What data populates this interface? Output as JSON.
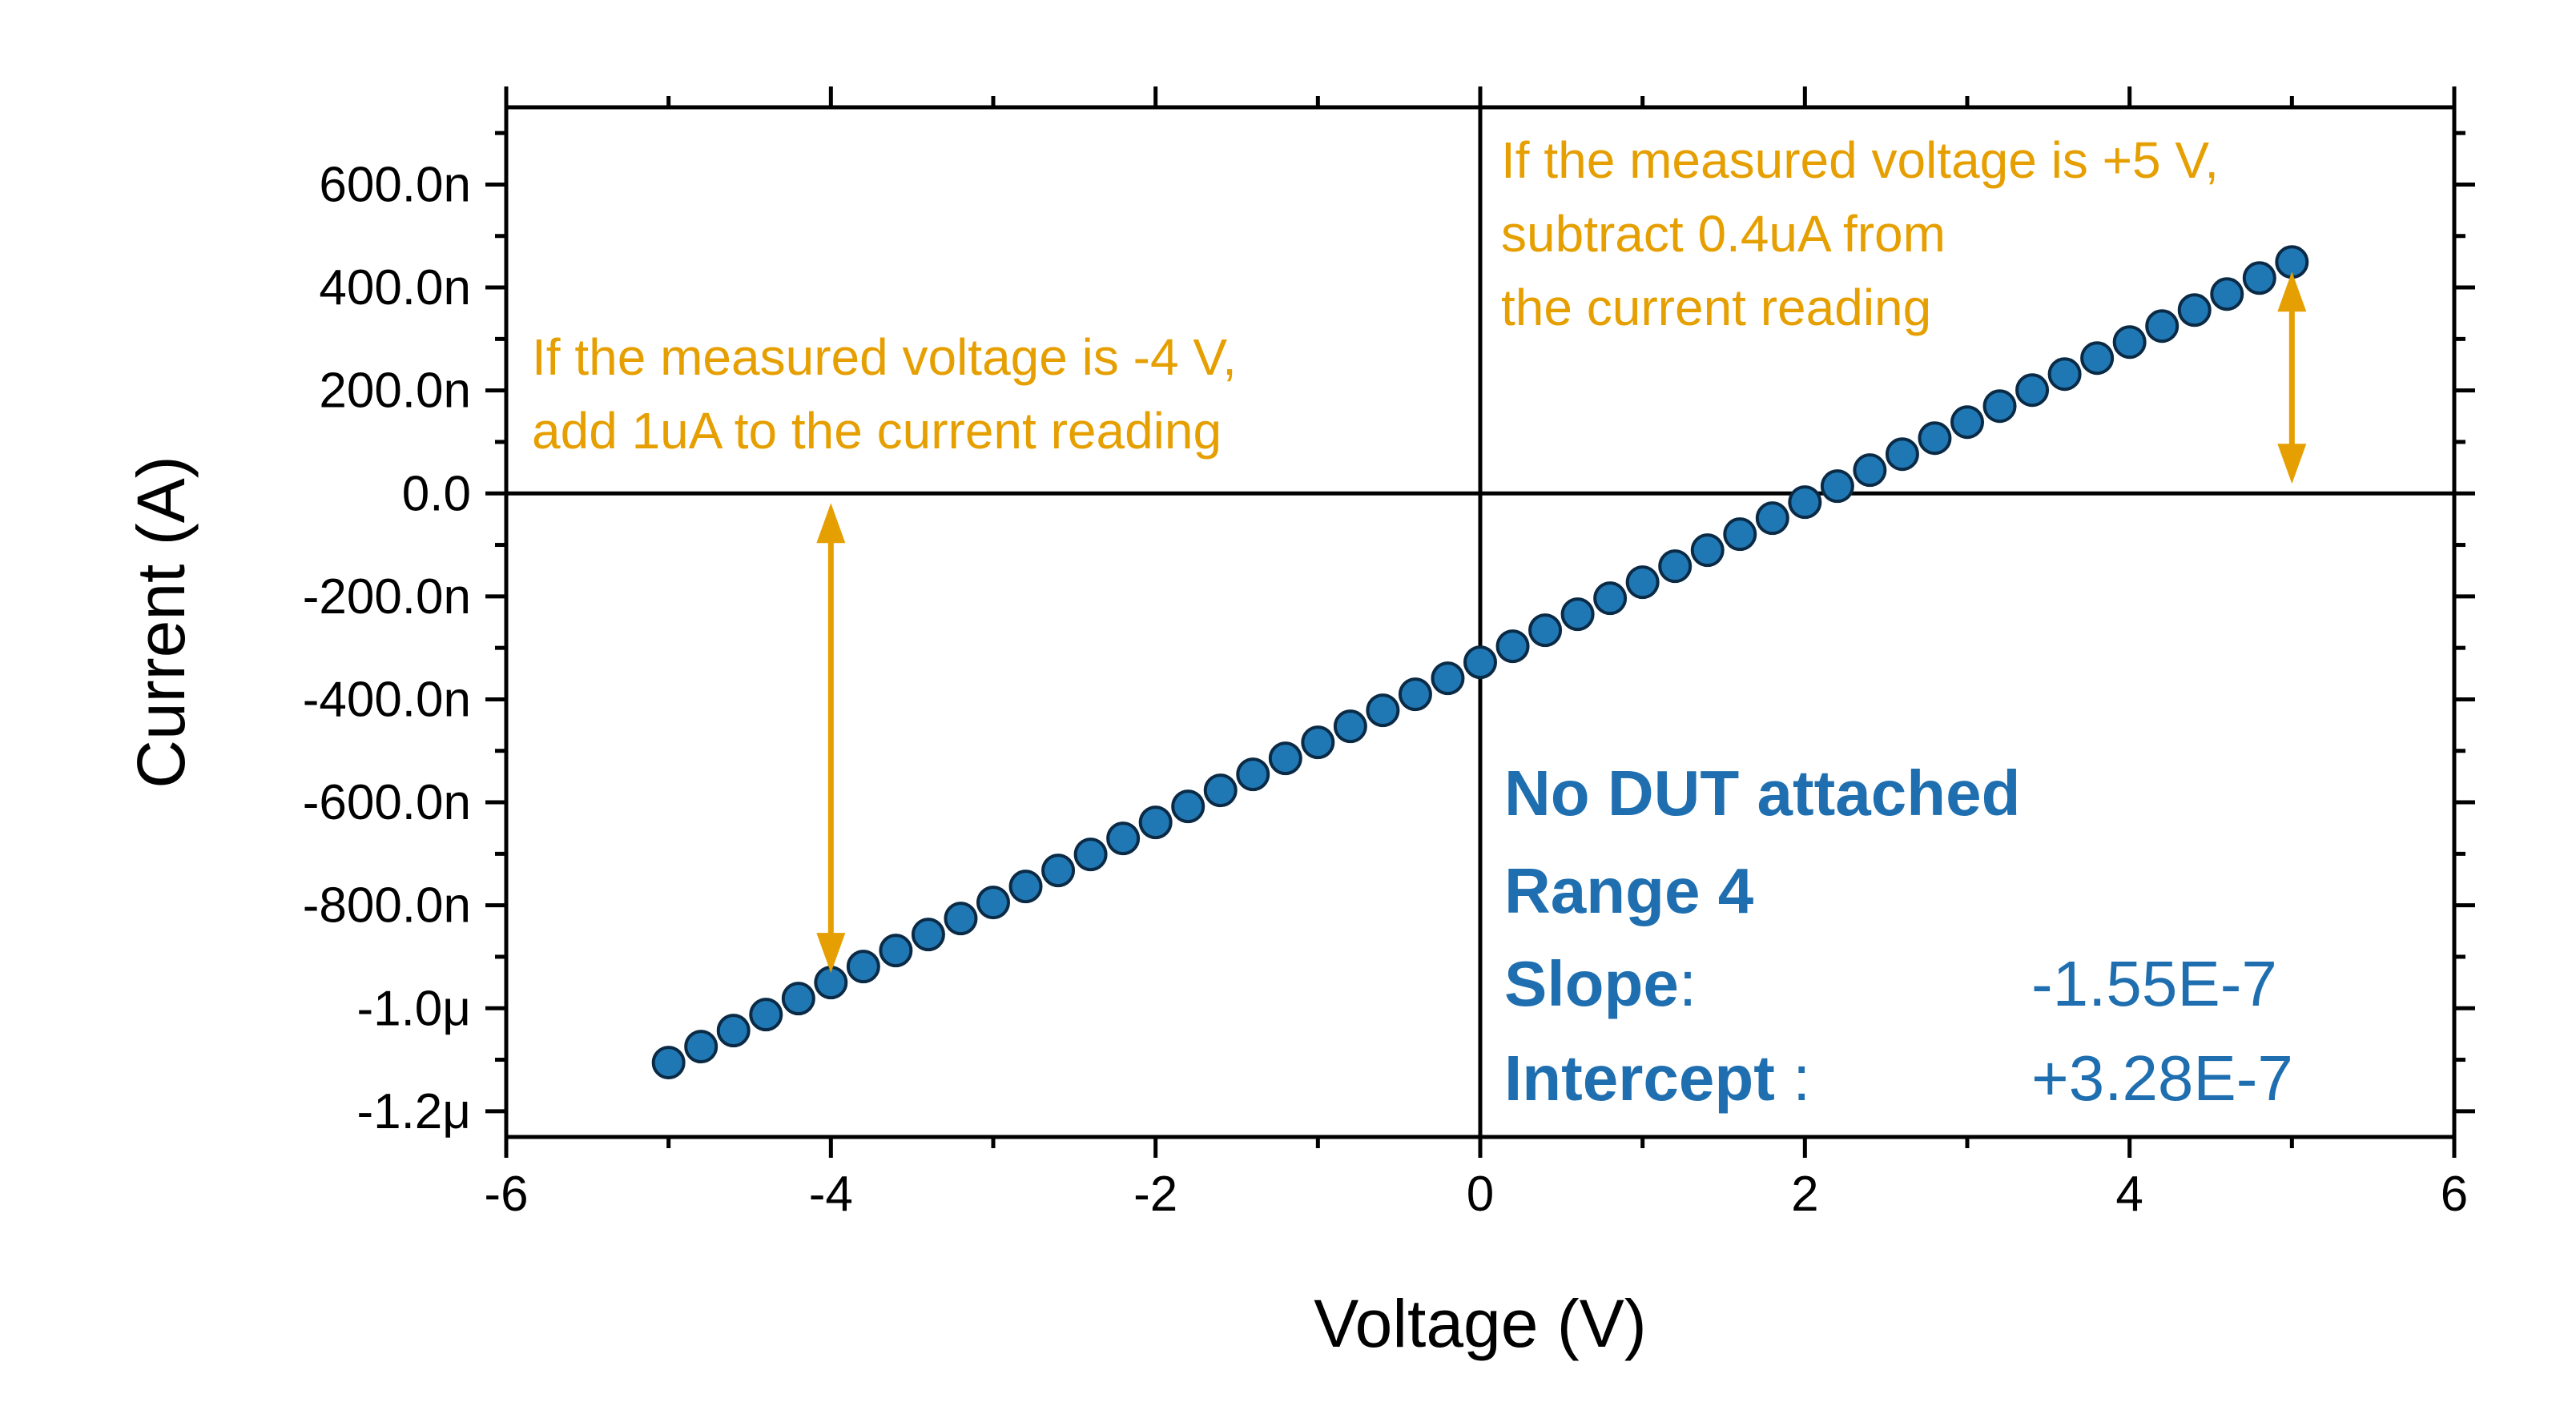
{
  "chart_data": {
    "type": "scatter",
    "xlabel": "Voltage (V)",
    "ylabel": "Current (A)",
    "xlim": [
      -6,
      6
    ],
    "ylim": [
      -1.25e-06,
      7.5e-07
    ],
    "x_major_ticks": [
      -6,
      -4,
      -2,
      0,
      2,
      4,
      6
    ],
    "x_tick_labels": [
      "-6",
      "-4",
      "-2",
      "0",
      "2",
      "4",
      "6"
    ],
    "y_major_ticks": [
      -1.2e-06,
      -1e-06,
      -8e-07,
      -6e-07,
      -4e-07,
      -2e-07,
      0,
      2e-07,
      4e-07,
      6e-07
    ],
    "y_tick_labels": [
      "-1.2μ",
      "-1.0μ",
      "-800.0n",
      "-600.0n",
      "-400.0n",
      "-200.0n",
      "0.0",
      "200.0n",
      "400.0n",
      "600.0n"
    ],
    "grid": false,
    "zero_lines": true,
    "series": [
      {
        "color": "#1f77b4",
        "fit": {
          "slope_per_volt": 1.555e-07,
          "intercept": -3.28e-07
        },
        "x": [
          -5.0,
          -4.8,
          -4.6,
          -4.4,
          -4.2,
          -4.0,
          -3.8,
          -3.6,
          -3.4,
          -3.2,
          -3.0,
          -2.8,
          -2.6,
          -2.4,
          -2.2,
          -2.0,
          -1.8,
          -1.6,
          -1.4,
          -1.2,
          -1.0,
          -0.8,
          -0.6,
          -0.4,
          -0.2,
          0.0,
          0.2,
          0.4,
          0.6,
          0.8,
          1.0,
          1.2,
          1.4,
          1.6,
          1.8,
          2.0,
          2.2,
          2.4,
          2.6,
          2.8,
          3.0,
          3.2,
          3.4,
          3.6,
          3.8,
          4.0,
          4.2,
          4.4,
          4.6,
          4.8,
          5.0
        ],
        "y": [
          -1.1055e-06,
          -1.0744e-06,
          -1.0433e-06,
          -1.0122e-06,
          -9.811e-07,
          -9.5e-07,
          -9.189e-07,
          -8.878e-07,
          -8.567e-07,
          -8.256e-07,
          -7.945e-07,
          -7.634e-07,
          -7.323e-07,
          -7.012e-07,
          -6.701e-07,
          -6.39e-07,
          -6.079e-07,
          -5.768e-07,
          -5.457e-07,
          -5.146e-07,
          -4.835e-07,
          -4.524e-07,
          -4.213e-07,
          -3.902e-07,
          -3.591e-07,
          -3.28e-07,
          -2.969e-07,
          -2.658e-07,
          -2.347e-07,
          -2.036e-07,
          -1.725e-07,
          -1.414e-07,
          -1.103e-07,
          -7.92e-08,
          -4.81e-08,
          -1.7e-08,
          1.41e-08,
          4.52e-08,
          7.63e-08,
          1.074e-07,
          1.385e-07,
          1.696e-07,
          2.007e-07,
          2.318e-07,
          2.629e-07,
          2.94e-07,
          3.251e-07,
          3.562e-07,
          3.873e-07,
          4.184e-07,
          4.495e-07
        ]
      }
    ],
    "annotations": {
      "left_note": {
        "lines": [
          "If the measured voltage is -4 V,",
          "add 1uA to the current reading"
        ],
        "color": "#e69f00",
        "arrow": {
          "x": -4.0,
          "from_y": 0,
          "to_y": -9.5e-07
        }
      },
      "right_note": {
        "lines": [
          "If the measured voltage is +5 V,",
          "subtract 0.4uA from",
          "the current reading"
        ],
        "color": "#e69f00",
        "arrow": {
          "x": 5.0,
          "from_y": 0,
          "to_y": 4.495e-07
        }
      },
      "info_box": {
        "color": "#1f6fb0",
        "title": "No DUT attached",
        "range": "Range 4",
        "slope_label": "Slope",
        "slope_colon": ":",
        "slope_value": "-1.55E-7",
        "intercept_label": "Intercept",
        "intercept_colon": " :",
        "intercept_value": "+3.28E-7"
      }
    }
  }
}
